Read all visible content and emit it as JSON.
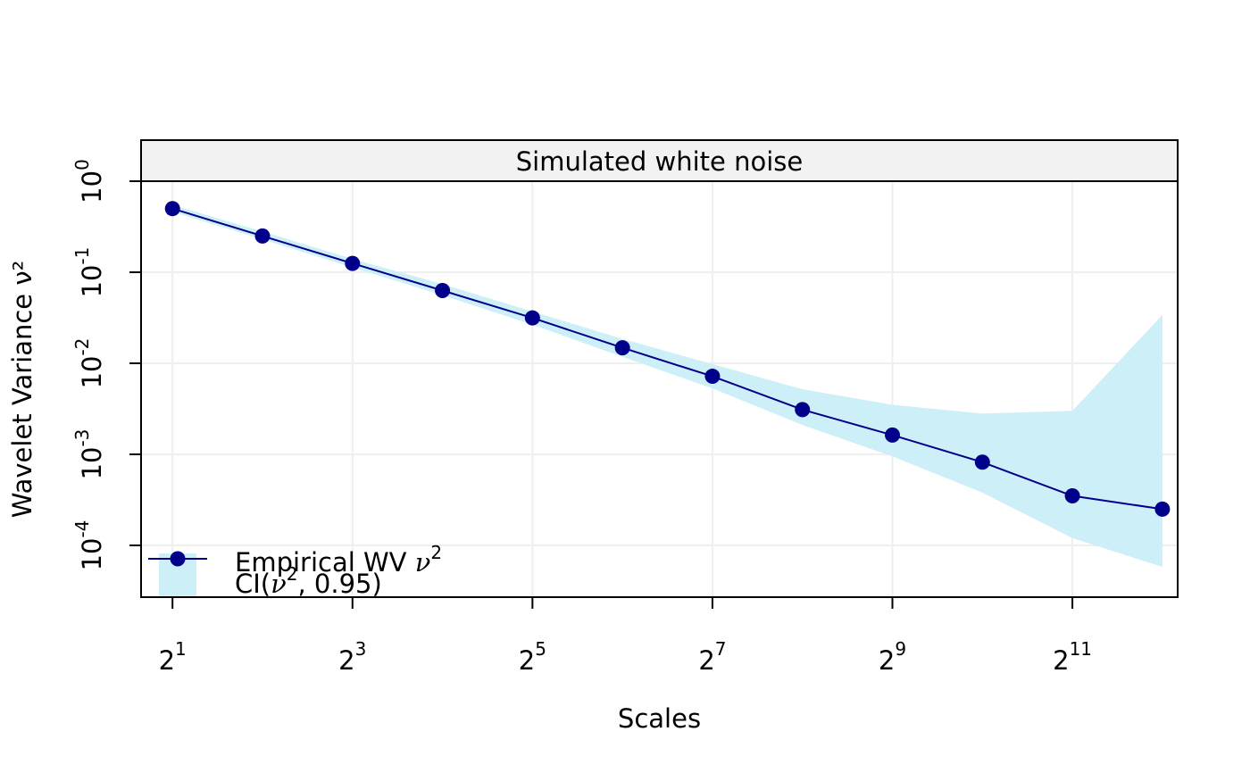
{
  "chart_data": {
    "type": "line",
    "title": "Simulated white noise",
    "xlabel": "Scales",
    "ylabel": "Wavelet Variance ν²",
    "x_scale": "log2",
    "y_scale": "log10",
    "xlim": [
      1.57,
      4608
    ],
    "ylim": [
      2.7e-05,
      1.0
    ],
    "x": [
      2,
      4,
      8,
      16,
      32,
      64,
      128,
      256,
      512,
      1024,
      2048,
      4096
    ],
    "x_ticks": [
      {
        "value": 2,
        "base": "2",
        "exp": "1"
      },
      {
        "value": 8,
        "base": "2",
        "exp": "3"
      },
      {
        "value": 32,
        "base": "2",
        "exp": "5"
      },
      {
        "value": 128,
        "base": "2",
        "exp": "7"
      },
      {
        "value": 512,
        "base": "2",
        "exp": "9"
      },
      {
        "value": 2048,
        "base": "2",
        "exp": "11"
      }
    ],
    "y_ticks": [
      {
        "value": 1,
        "base": "10",
        "exp": "0"
      },
      {
        "value": 0.1,
        "base": "10",
        "exp": "-1"
      },
      {
        "value": 0.01,
        "base": "10",
        "exp": "-2"
      },
      {
        "value": 0.001,
        "base": "10",
        "exp": "-3"
      },
      {
        "value": 0.0001,
        "base": "10",
        "exp": "-4"
      }
    ],
    "series": [
      {
        "name": "Empirical WV ν²",
        "color": "#00008B",
        "values": [
          0.5,
          0.25,
          0.125,
          0.063,
          0.0315,
          0.0148,
          0.0072,
          0.0031,
          0.00163,
          0.00082,
          0.00035,
          0.00025
        ]
      }
    ],
    "ci": {
      "name": "CI(ν², 0.95)",
      "color": "#CDEFF7",
      "lower": [
        0.46,
        0.23,
        0.113,
        0.056,
        0.0265,
        0.0118,
        0.0053,
        0.0021,
        0.00095,
        0.00038,
        0.00012,
        5.8e-05
      ],
      "upper": [
        0.55,
        0.28,
        0.14,
        0.074,
        0.037,
        0.0185,
        0.0098,
        0.0052,
        0.0035,
        0.0028,
        0.003,
        0.034
      ]
    },
    "legend": {
      "position": "bottom-left",
      "entry_line": {
        "text": "Empirical WV ",
        "sym": "ν",
        "sup": "2"
      },
      "entry_ci": {
        "pre": "CI(",
        "sym": "ν",
        "sup": "2",
        "post": ", 0.95)"
      }
    },
    "grid": true,
    "colors": {
      "grid": "#EFEFEF",
      "strip_bg": "#F2F2F2",
      "frame": "#000000"
    }
  }
}
